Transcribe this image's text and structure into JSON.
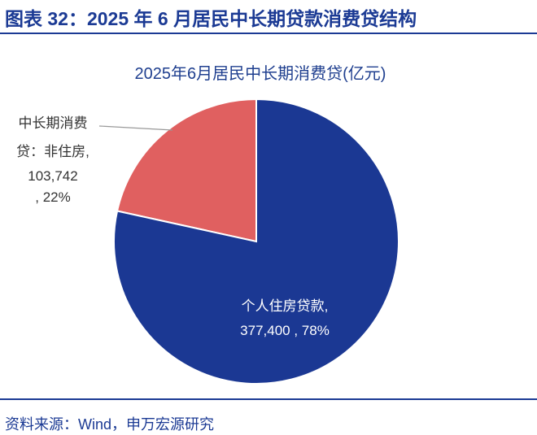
{
  "header": {
    "title": "图表 32：2025 年 6 月居民中长期贷款消费贷结构"
  },
  "chart_data": {
    "type": "pie",
    "title": "2025年6月居民中长期消费贷(亿元)",
    "categories": [
      "个人住房贷款,",
      "中长期消费贷：非住房,"
    ],
    "values": [
      377400,
      103742
    ],
    "value_labels": [
      "377,400 , 78%",
      "103,742 , 22%"
    ],
    "colors": [
      "#1b3893",
      "#e06060"
    ]
  },
  "footer": {
    "source": "资料来源：Wind，申万宏源研究"
  }
}
